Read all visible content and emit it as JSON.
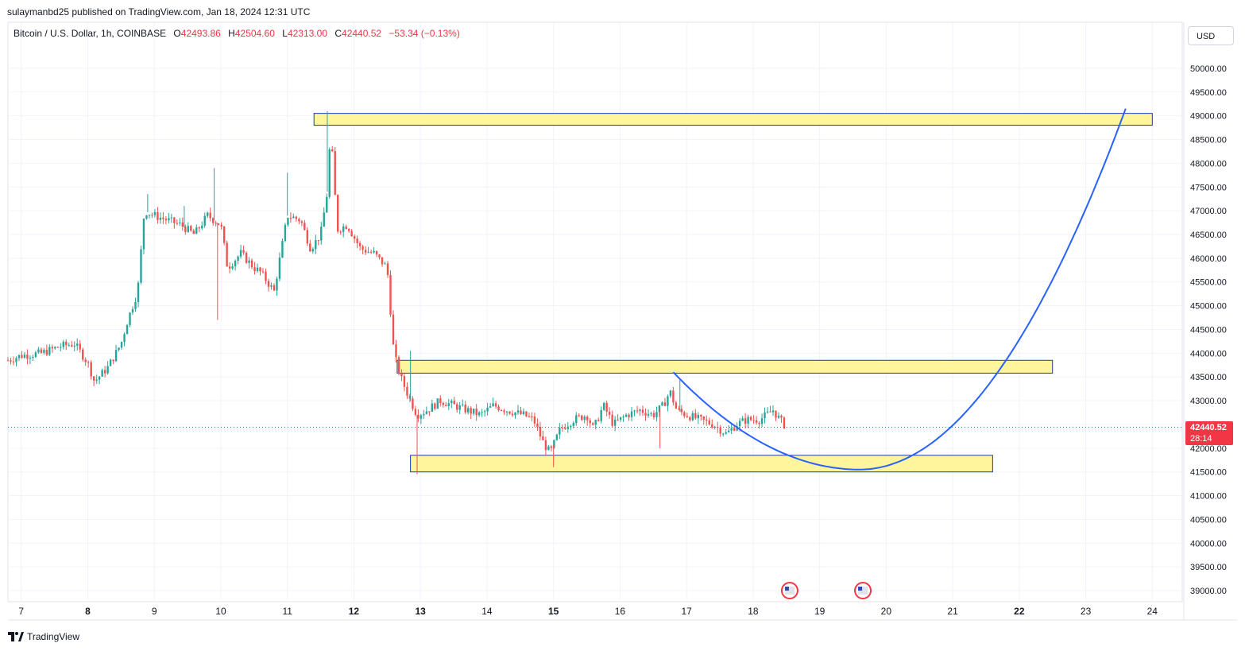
{
  "header": {
    "published": "sulaymanbd25 published on TradingView.com, Jan 18, 2024 12:31 UTC"
  },
  "legend": {
    "symbol": "Bitcoin / U.S. Dollar, 1h, COINBASE",
    "o_label": "O",
    "o_value": "42493.86",
    "h_label": "H",
    "h_value": "42504.60",
    "l_label": "L",
    "l_value": "42313.00",
    "c_label": "C",
    "c_value": "42440.52",
    "change": "−53.34 (−0.13%)"
  },
  "currency": "USD",
  "last_price": {
    "price": "42440.52",
    "countdown": "28:14"
  },
  "footer": {
    "brand": "TradingView"
  },
  "colors": {
    "up": "#26a69a",
    "down": "#ef5350",
    "zone": "#fff59d",
    "zone_border": "#1e3a9e",
    "curve": "#2962ff",
    "last": "#f23645"
  },
  "chart_data": {
    "type": "candlestick",
    "title": "Bitcoin / U.S. Dollar, 1h, COINBASE",
    "ylim": [
      38800,
      50400
    ],
    "y_ticks": [
      "50000.00",
      "49500.00",
      "49000.00",
      "48500.00",
      "48000.00",
      "47500.00",
      "47000.00",
      "46500.00",
      "46000.00",
      "45500.00",
      "45000.00",
      "44500.00",
      "44000.00",
      "43500.00",
      "43000.00",
      "42500.00",
      "42000.00",
      "41500.00",
      "41000.00",
      "40500.00",
      "40000.00",
      "39500.00",
      "39000.00"
    ],
    "x_ticks": [
      "7",
      "8",
      "9",
      "10",
      "11",
      "12",
      "13",
      "14",
      "15",
      "16",
      "17",
      "18",
      "19",
      "20",
      "21",
      "22",
      "23",
      "24"
    ],
    "x_bold": [
      "8",
      "12",
      "13",
      "15",
      "22"
    ],
    "xlim_days": [
      6.8,
      24.45
    ],
    "price_path": [
      [
        6.8,
        43850
      ],
      [
        7.0,
        43950
      ],
      [
        7.3,
        44000
      ],
      [
        7.6,
        44150
      ],
      [
        7.8,
        44200
      ],
      [
        8.0,
        43800
      ],
      [
        8.1,
        43400
      ],
      [
        8.3,
        43700
      ],
      [
        8.5,
        44200
      ],
      [
        8.6,
        44700
      ],
      [
        8.75,
        45300
      ],
      [
        8.85,
        47000
      ],
      [
        9.0,
        46900
      ],
      [
        9.2,
        46800
      ],
      [
        9.4,
        46700
      ],
      [
        9.6,
        46500
      ],
      [
        9.8,
        46900
      ],
      [
        10.0,
        46700
      ],
      [
        10.1,
        45800
      ],
      [
        10.3,
        46100
      ],
      [
        10.5,
        45800
      ],
      [
        10.6,
        45700
      ],
      [
        10.8,
        45300
      ],
      [
        10.95,
        46500
      ],
      [
        11.0,
        46900
      ],
      [
        11.2,
        46800
      ],
      [
        11.35,
        46200
      ],
      [
        11.5,
        46500
      ],
      [
        11.6,
        47400
      ],
      [
        11.65,
        48700
      ],
      [
        11.75,
        46600
      ],
      [
        11.9,
        46700
      ],
      [
        12.1,
        46200
      ],
      [
        12.3,
        46100
      ],
      [
        12.5,
        45800
      ],
      [
        12.6,
        44000
      ],
      [
        12.7,
        43500
      ],
      [
        12.85,
        43000
      ],
      [
        12.95,
        42700
      ],
      [
        13.1,
        42800
      ],
      [
        13.3,
        43000
      ],
      [
        13.5,
        42900
      ],
      [
        13.7,
        42800
      ],
      [
        13.9,
        42700
      ],
      [
        14.1,
        42900
      ],
      [
        14.3,
        42800
      ],
      [
        14.55,
        42700
      ],
      [
        14.7,
        42600
      ],
      [
        14.85,
        42100
      ],
      [
        14.95,
        41900
      ],
      [
        15.1,
        42400
      ],
      [
        15.3,
        42600
      ],
      [
        15.5,
        42700
      ],
      [
        15.6,
        42400
      ],
      [
        15.75,
        42900
      ],
      [
        15.9,
        42500
      ],
      [
        16.1,
        42700
      ],
      [
        16.3,
        42800
      ],
      [
        16.5,
        42700
      ],
      [
        16.65,
        42900
      ],
      [
        16.75,
        43200
      ],
      [
        16.85,
        42800
      ],
      [
        17.0,
        42700
      ],
      [
        17.2,
        42600
      ],
      [
        17.4,
        42500
      ],
      [
        17.6,
        42300
      ],
      [
        17.75,
        42500
      ],
      [
        17.9,
        42600
      ],
      [
        18.1,
        42600
      ],
      [
        18.3,
        42800
      ],
      [
        18.4,
        42600
      ],
      [
        18.5,
        42440
      ]
    ],
    "wicks": [
      {
        "day": 8.9,
        "high": 47350
      },
      {
        "day": 9.45,
        "high": 47100
      },
      {
        "day": 9.9,
        "high": 47900
      },
      {
        "day": 9.95,
        "low": 44700
      },
      {
        "day": 11.0,
        "high": 47800
      },
      {
        "day": 11.6,
        "high": 49100
      },
      {
        "day": 12.85,
        "high": 44050
      },
      {
        "day": 12.95,
        "low": 41450
      },
      {
        "day": 15.0,
        "low": 41600
      },
      {
        "day": 16.6,
        "low": 42000
      },
      {
        "day": 16.9,
        "high": 43450
      }
    ],
    "zones": [
      {
        "day_start": 11.4,
        "day_end": 24.0,
        "price_low": 48800,
        "price_high": 49050
      },
      {
        "day_start": 12.65,
        "day_end": 22.5,
        "price_low": 43580,
        "price_high": 43850
      },
      {
        "day_start": 12.85,
        "day_end": 21.6,
        "price_low": 41500,
        "price_high": 41850
      }
    ],
    "projection_curve": {
      "start": [
        16.8,
        43600
      ],
      "vertex": [
        19.6,
        41550
      ],
      "end": [
        23.6,
        49150
      ]
    },
    "events": [
      {
        "day": 18.55,
        "icon": "us-flag-icon"
      },
      {
        "day": 19.65,
        "icon": "us-flag-icon"
      }
    ],
    "last_price": 42440.52
  }
}
